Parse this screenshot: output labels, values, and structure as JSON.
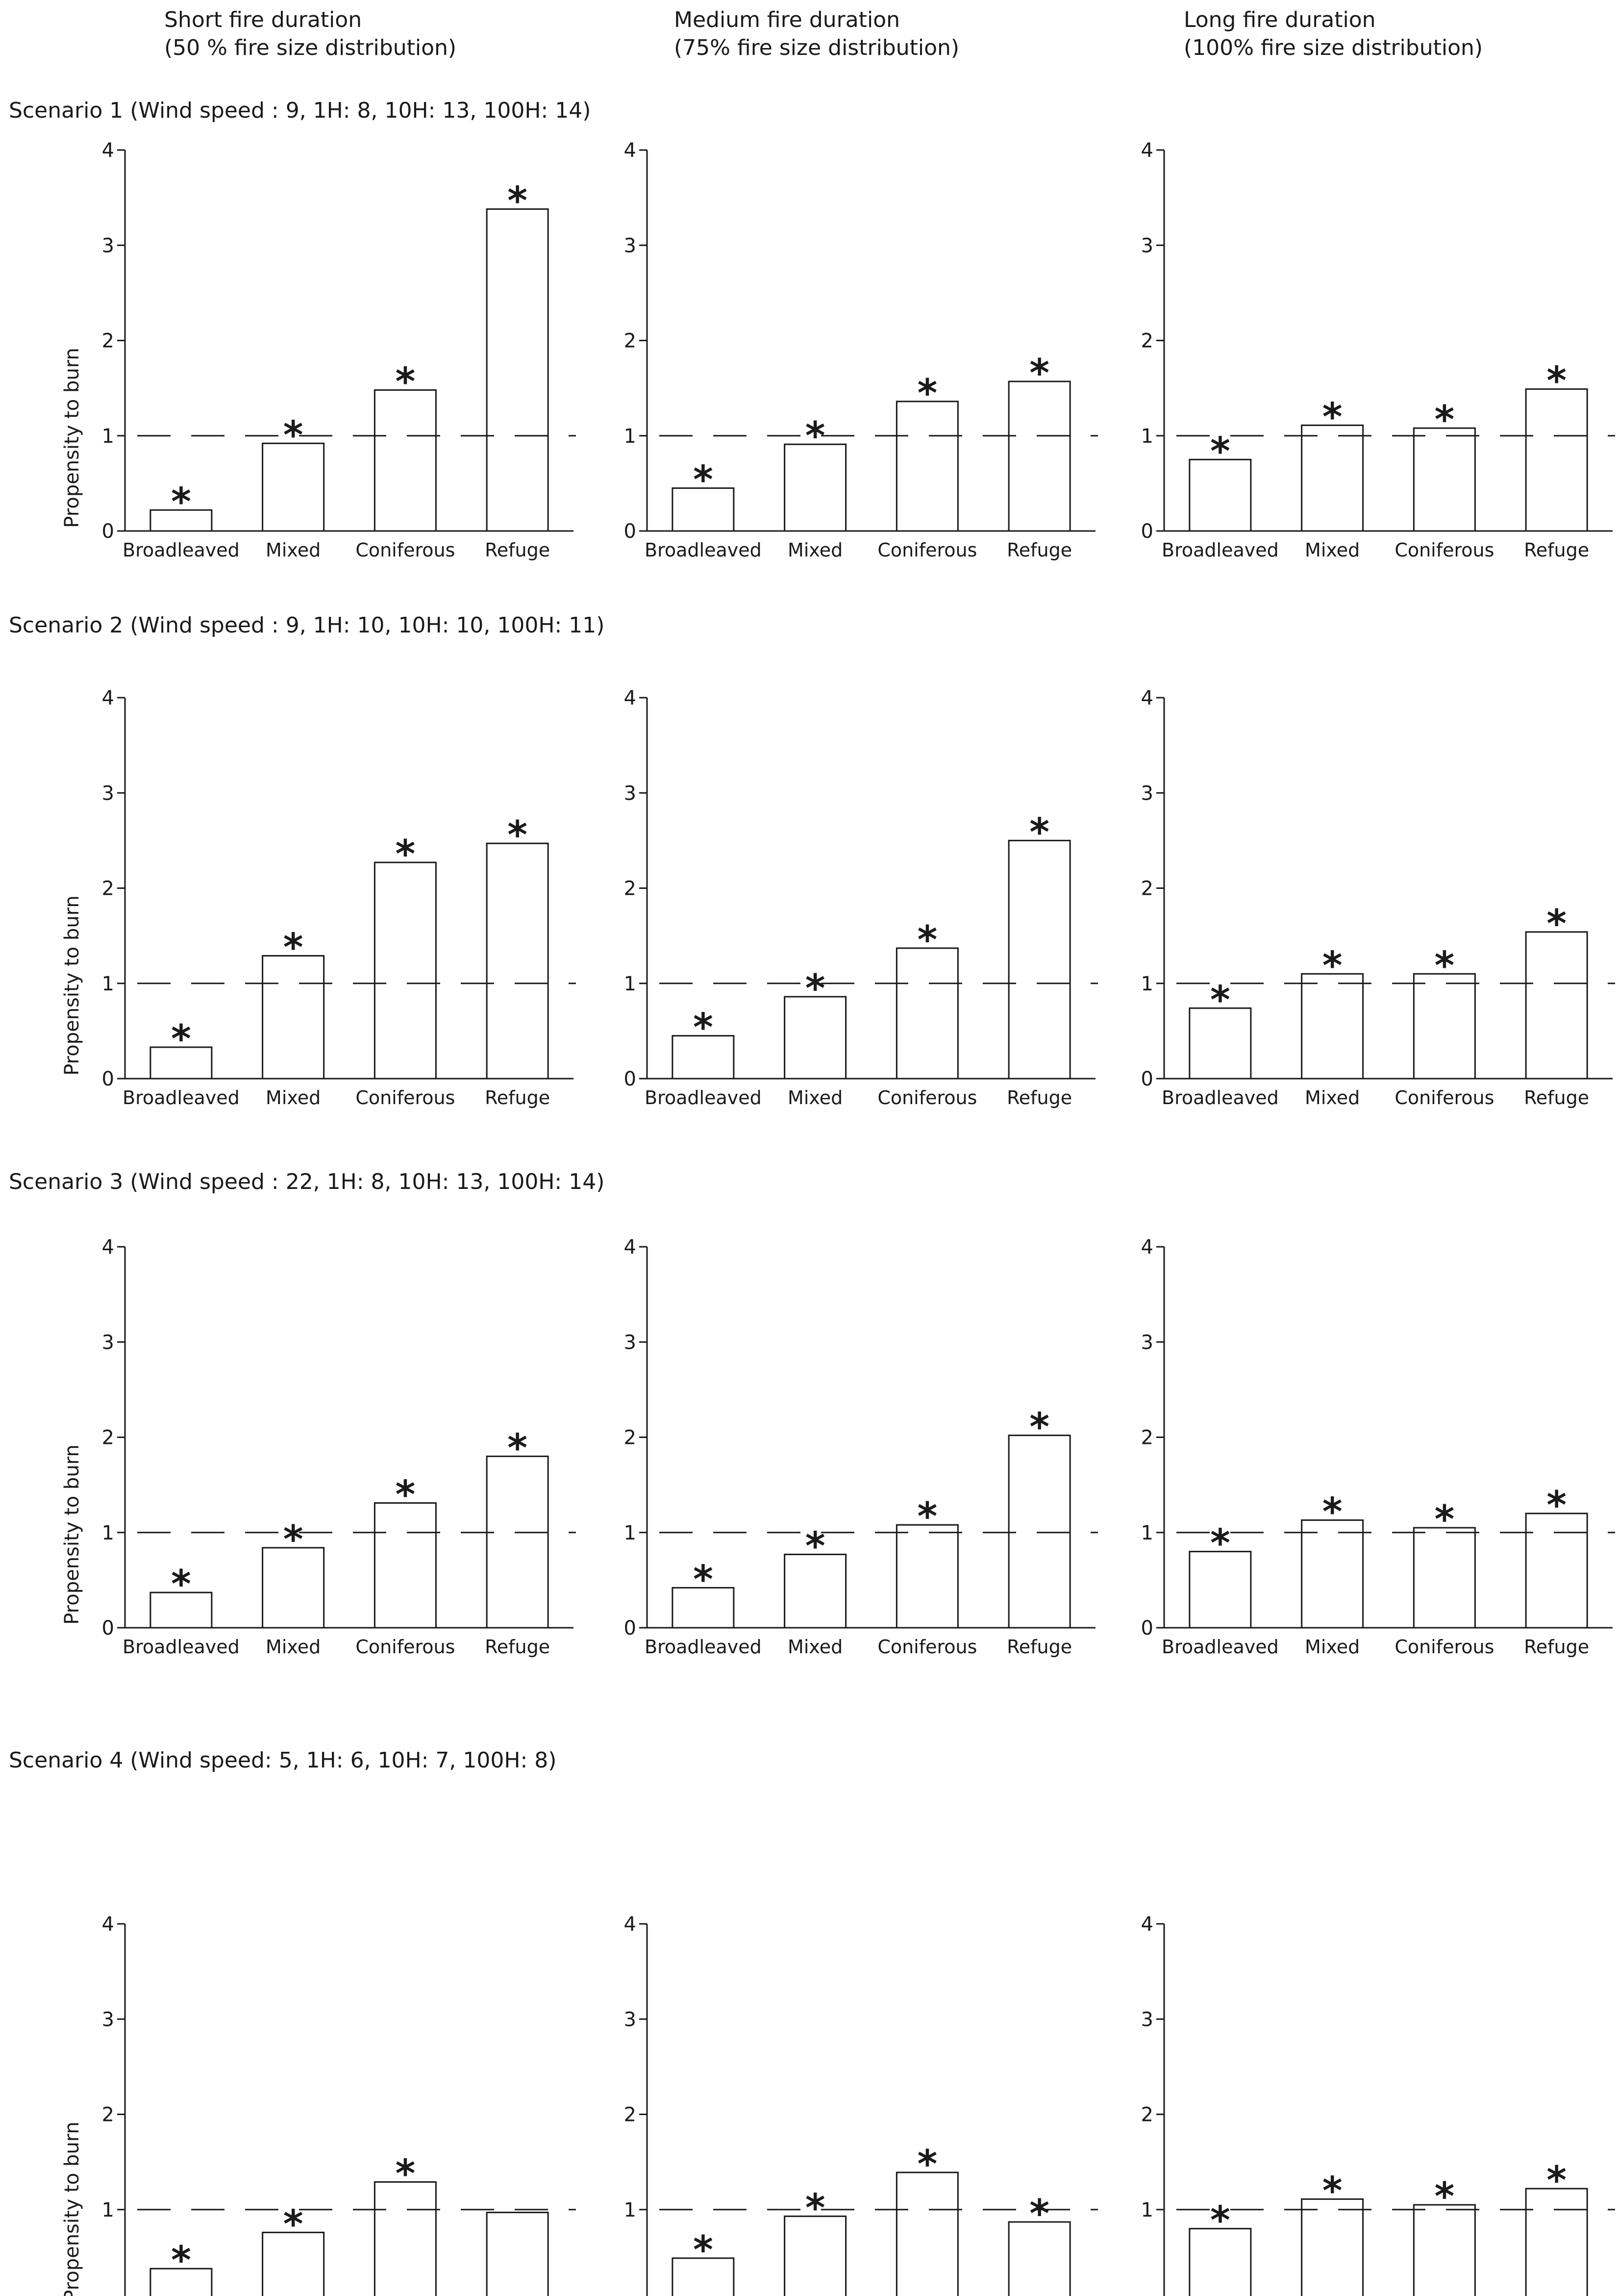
{
  "columns": [
    {
      "line1": "Short fire duration",
      "line2": "(50 % fire size distribution)"
    },
    {
      "line1": "Medium fire duration",
      "line2": "(75% fire size distribution)"
    },
    {
      "line1": "Long fire duration",
      "line2": "(100% fire size distribution)"
    }
  ],
  "scenarios": [
    "Scenario 1 (Wind speed : 9, 1H: 8, 10H: 13, 100H: 14)",
    "Scenario 2 (Wind speed : 9, 1H: 10, 10H: 10, 100H: 11)",
    "Scenario 3 (Wind speed : 22, 1H: 8, 10H: 13, 100H: 14)",
    "Scenario 4 (Wind speed: 5, 1H: 6, 10H: 7, 100H: 8)"
  ],
  "chart_data": {
    "type": "bar",
    "ylabel": "Propensity to burn",
    "ylim": [
      0,
      4
    ],
    "yticks": [
      "0",
      "1",
      "2",
      "3",
      "4"
    ],
    "reference_line": 1,
    "categories": [
      "Broadleaved",
      "Mixed",
      "Coniferous",
      "Refuge"
    ],
    "significance_marker": "*",
    "panels": [
      {
        "scenario": 1,
        "duration": "Short",
        "values": [
          0.22,
          0.92,
          1.48,
          3.38
        ],
        "significant": [
          true,
          true,
          true,
          true
        ]
      },
      {
        "scenario": 1,
        "duration": "Medium",
        "values": [
          0.45,
          0.91,
          1.36,
          1.57
        ],
        "significant": [
          true,
          true,
          true,
          true
        ]
      },
      {
        "scenario": 1,
        "duration": "Long",
        "values": [
          0.75,
          1.11,
          1.08,
          1.49
        ],
        "significant": [
          true,
          true,
          true,
          true
        ]
      },
      {
        "scenario": 2,
        "duration": "Short",
        "values": [
          0.33,
          1.29,
          2.27,
          2.47
        ],
        "significant": [
          true,
          true,
          true,
          true
        ]
      },
      {
        "scenario": 2,
        "duration": "Medium",
        "values": [
          0.45,
          0.86,
          1.37,
          2.5
        ],
        "significant": [
          true,
          true,
          true,
          true
        ]
      },
      {
        "scenario": 2,
        "duration": "Long",
        "values": [
          0.74,
          1.1,
          1.1,
          1.54
        ],
        "significant": [
          true,
          true,
          true,
          true
        ]
      },
      {
        "scenario": 3,
        "duration": "Short",
        "values": [
          0.37,
          0.84,
          1.31,
          1.8
        ],
        "significant": [
          true,
          true,
          true,
          true
        ]
      },
      {
        "scenario": 3,
        "duration": "Medium",
        "values": [
          0.42,
          0.77,
          1.08,
          2.02
        ],
        "significant": [
          true,
          true,
          true,
          true
        ]
      },
      {
        "scenario": 3,
        "duration": "Long",
        "values": [
          0.8,
          1.13,
          1.05,
          1.2
        ],
        "significant": [
          true,
          true,
          true,
          true
        ]
      },
      {
        "scenario": 4,
        "duration": "Short",
        "values": [
          0.38,
          0.76,
          1.29,
          0.97
        ],
        "significant": [
          true,
          true,
          true,
          false
        ]
      },
      {
        "scenario": 4,
        "duration": "Medium",
        "values": [
          0.49,
          0.93,
          1.39,
          0.87
        ],
        "significant": [
          true,
          true,
          true,
          true
        ]
      },
      {
        "scenario": 4,
        "duration": "Long",
        "values": [
          0.8,
          1.11,
          1.05,
          1.22
        ],
        "significant": [
          true,
          true,
          true,
          true
        ]
      }
    ]
  }
}
